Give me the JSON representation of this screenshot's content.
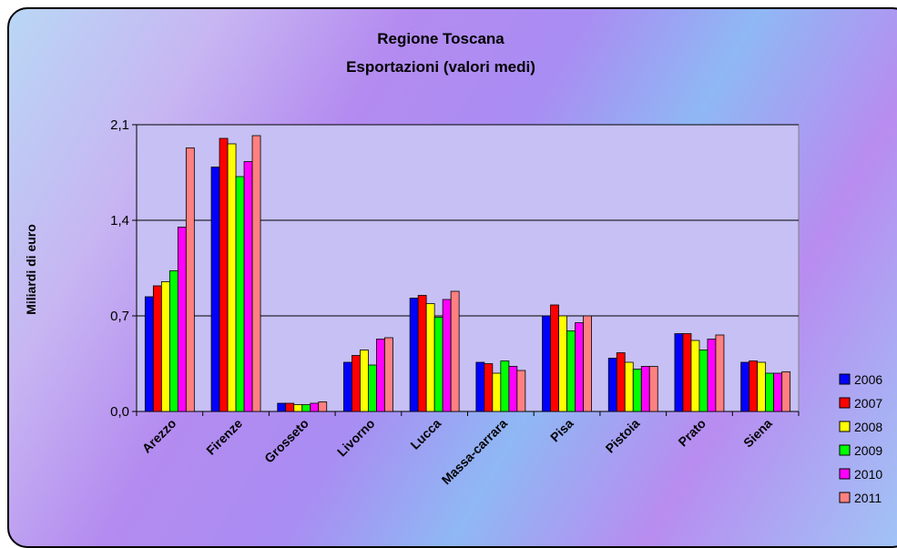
{
  "chart_data": {
    "type": "bar",
    "title": "Regione Toscana",
    "subtitle": "Esportazioni  (valori medi)",
    "ylabel": "Miliardi di euro",
    "xlabel": "",
    "ylim": [
      0,
      2.1
    ],
    "yticks": [
      "0,0",
      "0,7",
      "1,4",
      "2,1"
    ],
    "ytick_values": [
      0,
      0.7,
      1.4,
      2.1
    ],
    "grid": true,
    "legend_position": "right",
    "categories": [
      "Arezzo",
      "Firenze",
      "Grosseto",
      "Livorno",
      "Lucca",
      "Massa-carrara",
      "Pisa",
      "Pistoia",
      "Prato",
      "Siena"
    ],
    "series": [
      {
        "name": "2006",
        "color": "#0000ff",
        "values": [
          0.84,
          1.79,
          0.06,
          0.36,
          0.83,
          0.36,
          0.7,
          0.39,
          0.57,
          0.36
        ]
      },
      {
        "name": "2007",
        "color": "#ff0000",
        "values": [
          0.92,
          2.0,
          0.06,
          0.41,
          0.85,
          0.35,
          0.78,
          0.43,
          0.57,
          0.37
        ]
      },
      {
        "name": "2008",
        "color": "#ffff00",
        "values": [
          0.95,
          1.96,
          0.05,
          0.45,
          0.79,
          0.28,
          0.7,
          0.36,
          0.52,
          0.36
        ]
      },
      {
        "name": "2009",
        "color": "#00ff00",
        "values": [
          1.03,
          1.72,
          0.05,
          0.34,
          0.69,
          0.37,
          0.59,
          0.31,
          0.45,
          0.28
        ]
      },
      {
        "name": "2010",
        "color": "#ff00ff",
        "values": [
          1.35,
          1.83,
          0.06,
          0.53,
          0.82,
          0.33,
          0.65,
          0.33,
          0.53,
          0.28
        ]
      },
      {
        "name": "2011",
        "color": "#ff8080",
        "values": [
          1.93,
          2.02,
          0.07,
          0.54,
          0.88,
          0.3,
          0.7,
          0.33,
          0.56,
          0.29
        ]
      }
    ]
  }
}
